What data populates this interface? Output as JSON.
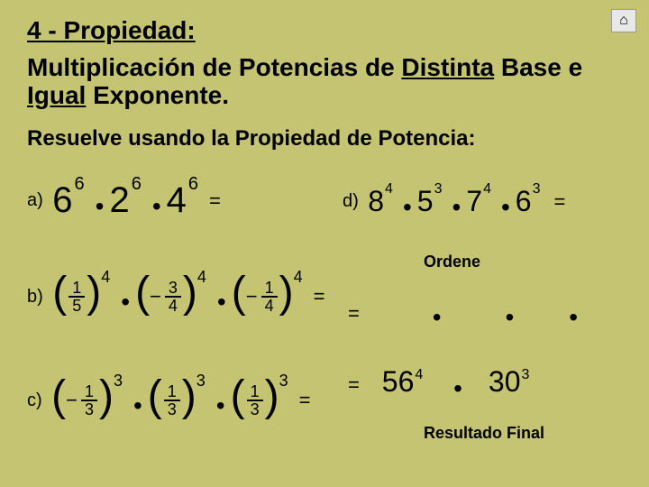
{
  "header": {
    "title": "4 - Propiedad:",
    "subtitle_pre": "Multiplicación de Potencias de ",
    "subtitle_u1": "Distinta",
    "subtitle_mid": " Base e ",
    "subtitle_u2": "Igual",
    "subtitle_post": " Exponente.",
    "instruction": "Resuelve usando la Propiedad de Potencia:"
  },
  "home_icon": "⌂",
  "labels": {
    "a": "a)",
    "b": "b)",
    "c": "c)",
    "d": "d)"
  },
  "eq": "=",
  "dot": "•",
  "problem_a": {
    "terms": [
      {
        "base": "6",
        "exp": "6"
      },
      {
        "base": "2",
        "exp": "6"
      },
      {
        "base": "4",
        "exp": "6"
      }
    ]
  },
  "problem_b": {
    "terms": [
      {
        "num": "1",
        "den": "5",
        "neg": false,
        "exp": "4"
      },
      {
        "num": "3",
        "den": "4",
        "neg": true,
        "exp": "4"
      },
      {
        "num": "1",
        "den": "4",
        "neg": true,
        "exp": "4"
      }
    ]
  },
  "problem_c": {
    "terms": [
      {
        "num": "1",
        "den": "3",
        "neg": true,
        "exp": "3"
      },
      {
        "num": "1",
        "den": "3",
        "neg": false,
        "exp": "3"
      },
      {
        "num": "1",
        "den": "3",
        "neg": false,
        "exp": "3"
      }
    ]
  },
  "problem_d": {
    "terms": [
      {
        "base": "8",
        "exp": "4"
      },
      {
        "base": "5",
        "exp": "3"
      },
      {
        "base": "7",
        "exp": "4"
      },
      {
        "base": "6",
        "exp": "3"
      }
    ],
    "ordene": "Ordene",
    "step2_dots": 3,
    "step3": [
      {
        "base": "56",
        "exp": "4"
      },
      {
        "base": "30",
        "exp": "3"
      }
    ],
    "final_label": "Resultado Final"
  },
  "colors": {
    "background": "#c4c473",
    "text": "#000000",
    "button_bg": "#e8e8e8",
    "button_border": "#999999"
  }
}
